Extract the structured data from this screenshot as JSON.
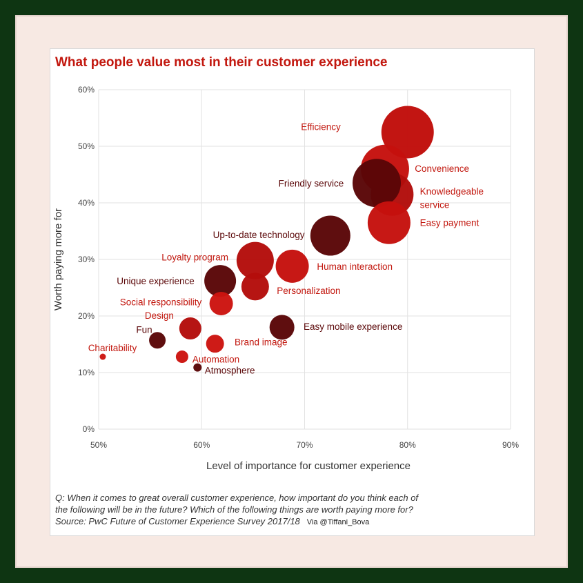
{
  "chart_data": {
    "type": "scatter",
    "title": "What people value most in their customer experience",
    "xlabel": "Level of importance for customer experience",
    "ylabel": "Worth paying more for",
    "xlim": [
      50,
      90
    ],
    "ylim": [
      0,
      60
    ],
    "x_ticks": [
      "50%",
      "60%",
      "70%",
      "80%",
      "90%"
    ],
    "y_ticks": [
      "0%",
      "10%",
      "20%",
      "30%",
      "40%",
      "50%",
      "60%"
    ],
    "grid": "vertical and horizontal",
    "points": [
      {
        "label": "Efficiency",
        "x": 80,
        "y": 52.5,
        "size": 38,
        "color": "#c00d0a"
      },
      {
        "label": "Convenience",
        "x": 77.8,
        "y": 46,
        "size": 35,
        "color": "#c5110d"
      },
      {
        "label": "Knowledgeable service",
        "x": 78.5,
        "y": 41.5,
        "size": 31,
        "color": "#b20d0b"
      },
      {
        "label": "Friendly service",
        "x": 77,
        "y": 43.5,
        "size": 35,
        "color": "#5a0607"
      },
      {
        "label": "Easy payment",
        "x": 78.2,
        "y": 36.5,
        "size": 31,
        "color": "#c5110d"
      },
      {
        "label": "Up-to-date technology",
        "x": 72.5,
        "y": 34.2,
        "size": 29,
        "color": "#5a0607"
      },
      {
        "label": "Human interaction",
        "x": 68.8,
        "y": 28.8,
        "size": 24,
        "color": "#c5110d"
      },
      {
        "label": "Loyalty program",
        "x": 65.2,
        "y": 29.8,
        "size": 27,
        "color": "#b40d0b"
      },
      {
        "label": "Personalization",
        "x": 65.2,
        "y": 25.2,
        "size": 20,
        "color": "#b40d0b"
      },
      {
        "label": "Unique experience",
        "x": 61.8,
        "y": 26.2,
        "size": 23,
        "color": "#5a0607"
      },
      {
        "label": "Social responsibility",
        "x": 61.9,
        "y": 22.2,
        "size": 17,
        "color": "#cc1410"
      },
      {
        "label": "Design",
        "x": 58.9,
        "y": 17.8,
        "size": 16,
        "color": "#b40d0b"
      },
      {
        "label": "Fun",
        "x": 55.7,
        "y": 15.7,
        "size": 12,
        "color": "#5a0607"
      },
      {
        "label": "Easy mobile experience",
        "x": 67.8,
        "y": 18,
        "size": 18,
        "color": "#5a0607"
      },
      {
        "label": "Brand image",
        "x": 61.3,
        "y": 15.1,
        "size": 13,
        "color": "#cc1410"
      },
      {
        "label": "Automation",
        "x": 58.1,
        "y": 12.8,
        "size": 9,
        "color": "#cc1410"
      },
      {
        "label": "Charitability",
        "x": 50.4,
        "y": 12.8,
        "size": 4.5,
        "color": "#cc1410"
      },
      {
        "label": "Atmosphere",
        "x": 59.6,
        "y": 10.9,
        "size": 6,
        "color": "#5a0607"
      }
    ],
    "point_labels": [
      {
        "text": "Efficiency",
        "of": "Efficiency",
        "anchor": "end",
        "color": "#c2170e",
        "x": 73.5,
        "y": 53.5
      },
      {
        "text": "Convenience",
        "of": "Convenience",
        "anchor": "start",
        "color": "#c2170e",
        "x": 80.7,
        "y": 46.1
      },
      {
        "text": "Knowledgeable",
        "of": "Knowledgeable service",
        "anchor": "start",
        "color": "#c2170e",
        "x": 81.2,
        "y": 42.1
      },
      {
        "text": "service",
        "of": "Knowledgeable service",
        "anchor": "start",
        "color": "#c2170e",
        "x": 81.2,
        "y": 39.7
      },
      {
        "text": "Friendly service",
        "of": "Friendly service",
        "anchor": "end",
        "color": "#5a0607",
        "x": 73.8,
        "y": 43.5
      },
      {
        "text": "Easy payment",
        "of": "Easy payment",
        "anchor": "start",
        "color": "#c2170e",
        "x": 81.2,
        "y": 36.5
      },
      {
        "text": "Up-to-date technology",
        "of": "Up-to-date technology",
        "anchor": "end",
        "color": "#5a0607",
        "x": 70.0,
        "y": 34.4
      },
      {
        "text": "Human interaction",
        "of": "Human interaction",
        "anchor": "start",
        "color": "#c2170e",
        "x": 71.2,
        "y": 28.8
      },
      {
        "text": "Loyalty program",
        "of": "Loyalty program",
        "anchor": "end",
        "color": "#c2170e",
        "x": 62.6,
        "y": 30.4
      },
      {
        "text": "Personalization",
        "of": "Personalization",
        "anchor": "start",
        "color": "#c2170e",
        "x": 67.3,
        "y": 24.5
      },
      {
        "text": "Unique experience",
        "of": "Unique experience",
        "anchor": "end",
        "color": "#5a0607",
        "x": 59.3,
        "y": 26.2
      },
      {
        "text": "Social responsibility",
        "of": "Social responsibility",
        "anchor": "end",
        "color": "#c2170e",
        "x": 60.0,
        "y": 22.5
      },
      {
        "text": "Design",
        "of": "Design",
        "anchor": "end",
        "color": "#c2170e",
        "x": 57.3,
        "y": 20.1
      },
      {
        "text": "Fun",
        "of": "Fun",
        "anchor": "end",
        "color": "#5a0607",
        "x": 55.2,
        "y": 17.6
      },
      {
        "text": "Easy mobile experience",
        "of": "Easy mobile experience",
        "anchor": "start",
        "color": "#5a0607",
        "x": 69.9,
        "y": 18.2
      },
      {
        "text": "Brand image",
        "of": "Brand image",
        "anchor": "start",
        "color": "#c2170e",
        "x": 63.2,
        "y": 15.4
      },
      {
        "text": "Automation",
        "of": "Automation",
        "anchor": "start",
        "color": "#c2170e",
        "x": 59.1,
        "y": 12.4
      },
      {
        "text": "Charitability",
        "of": "Charitability",
        "anchor": "end",
        "color": "#c2170e",
        "x": 53.7,
        "y": 14.4
      },
      {
        "text": "Atmosphere",
        "of": "Atmosphere",
        "anchor": "start",
        "color": "#5a0607",
        "x": 60.3,
        "y": 10.4
      }
    ]
  },
  "footnote": {
    "line1": "Q: When it comes to great overall customer experience, how important do you think each of",
    "line2": "the following will be in the future? Which of the following things are worth paying more for?",
    "line3": "Source: PwC Future of Customer Experience Survey 2017/18",
    "via": "Via @Tiffani_Bova"
  }
}
